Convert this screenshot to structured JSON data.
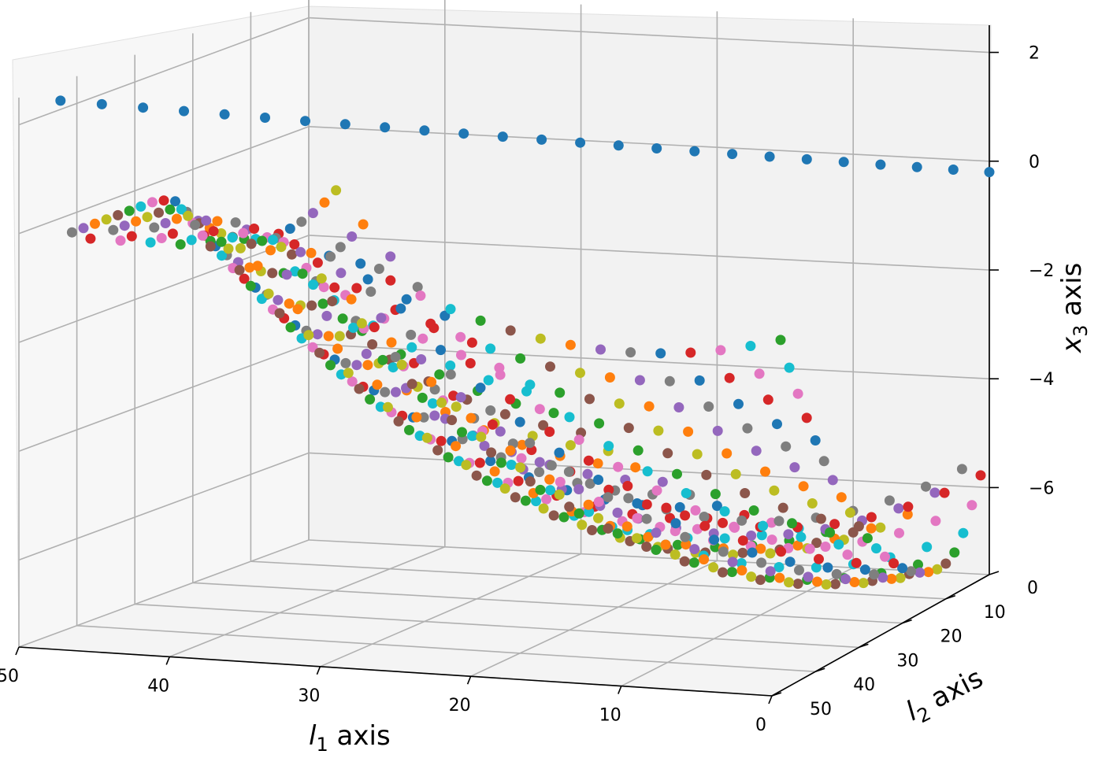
{
  "chart_data": {
    "type": "scatter",
    "projection": "3d",
    "axes": {
      "x": {
        "label_base": "l",
        "label_sub": "1",
        "label_suffix": " axis",
        "ticks": [
          "0",
          "10",
          "20",
          "30",
          "40",
          "50"
        ],
        "range": [
          0,
          50
        ]
      },
      "y": {
        "label_base": "l",
        "label_sub": "2",
        "label_suffix": " axis",
        "ticks": [
          "0",
          "10",
          "20",
          "30",
          "40",
          "50"
        ],
        "range": [
          0,
          50
        ]
      },
      "z": {
        "label_base": "x",
        "label_sub": "3",
        "label_suffix": " axis",
        "ticks": [
          "2",
          "0",
          "−2",
          "−4",
          "−6"
        ],
        "tick_values": [
          2,
          0,
          -2,
          -4,
          -6
        ],
        "range": [
          -7.6,
          2.5
        ]
      }
    },
    "grid": true,
    "palette": [
      "#1f77b4",
      "#ff7f0e",
      "#2ca02c",
      "#d62728",
      "#9467bd",
      "#8c564b",
      "#e377c2",
      "#7f7f7f",
      "#bcbd22",
      "#17becf"
    ],
    "series": [
      {
        "surface": "main",
        "l1": [
          0,
          49
        ],
        "l2": [
          0,
          49
        ],
        "note_grid_step": 2
      },
      {
        "surface": "upper_line",
        "l1_eq_l2": true,
        "l_range": [
          0,
          50
        ],
        "x3_range": [
          -1,
          2.4
        ]
      }
    ]
  }
}
